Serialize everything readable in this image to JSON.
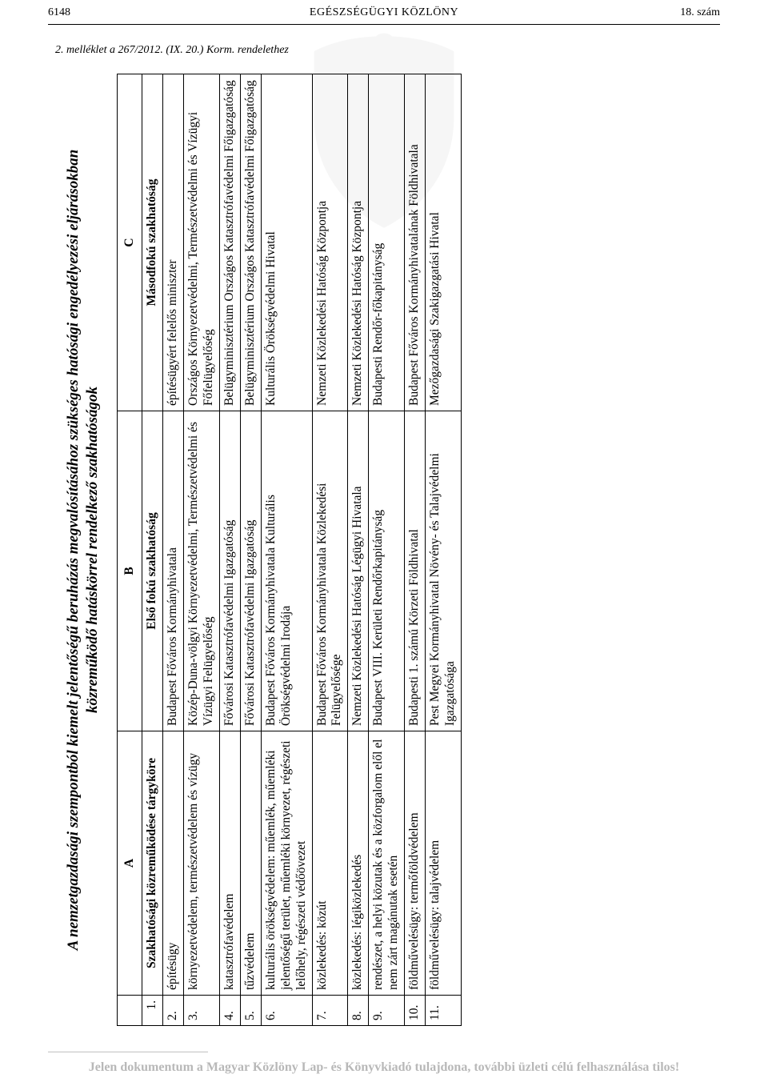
{
  "header": {
    "page_number": "6148",
    "journal_title": "EGÉSZSÉGÜGYI KÖZLÖNY",
    "issue": "18. szám"
  },
  "attachment_note": "2. melléklet a 267/2012. (IX. 20.) Korm. rendelethez",
  "title_line1": "A nemzetgazdasági szempontból kiemelt jelentőségű beruházás megvalósításához szükséges hatósági engedélyezési eljárásokban",
  "title_line2": "közreműködő hatáskörrel rendelkező szakhatóságok",
  "table": {
    "col_letters": [
      "",
      "A",
      "B",
      "C"
    ],
    "subheaders": {
      "num": "1.",
      "a": "Szakhatósági közreműködése tárgyköre",
      "b": "Első fokú szakhatóság",
      "c": "Másodfokú szakhatóság"
    },
    "rows": [
      {
        "n": "2.",
        "a": "építésügy",
        "b": "Budapest Főváros Kormányhivatala",
        "c": "építésügyért felelős miniszter"
      },
      {
        "n": "3.",
        "a": "környezetvédelem, természetvédelem és vízügy",
        "b": "Közép-Duna-völgyi Környezetvédelmi, Természetvédelmi és Vízügyi Felügyelőség",
        "c": "Országos Környezetvédelmi, Természetvédelmi és Vízügyi Főfelügyelőség"
      },
      {
        "n": "4.",
        "a": "katasztrófavédelem",
        "b": "Fővárosi Katasztrófavédelmi Igazgatóság",
        "c": "Belügyminisztérium Országos Katasztrófavédelmi Főigazgatóság"
      },
      {
        "n": "5.",
        "a": "tűzvédelem",
        "b": "Fővárosi Katasztrófavédelmi Igazgatóság",
        "c": "Belügyminisztérium Országos Katasztrófavédelmi Főigazgatóság"
      },
      {
        "n": "6.",
        "a": "kulturális örökségvédelem: műemlék, műemléki jelentőségű terület, műemléki környezet, régészeti lelőhely, régészeti védőövezet",
        "b": "Budapest Főváros Kormányhivatala Kulturális Örökségvédelmi Irodája",
        "c": "Kulturális Örökségvédelmi Hivatal"
      },
      {
        "n": "7.",
        "a": "közlekedés: közút",
        "b": "Budapest Főváros Kormányhivatala Közlekedési Felügyelősége",
        "c": "Nemzeti Közlekedési Hatóság Központja"
      },
      {
        "n": "8.",
        "a": "közlekedés: légiközlekedés",
        "b": "Nemzeti Közlekedési Hatóság Légügyi Hivatala",
        "c": "Nemzeti Közlekedési Hatóság Központja"
      },
      {
        "n": "9.",
        "a": "rendészet, a helyi közutak és a közforgalom elől el nem zárt magánutak esetén",
        "b": "Budapest VIII. Kerületi Rendőrkapitányság",
        "c": "Budapesti Rendőr-főkapitányság"
      },
      {
        "n": "10.",
        "a": "földművelésügy: termőföldvédelem",
        "b": "Budapesti 1. számú Körzeti Földhivatal",
        "c": "Budapest Főváros Kormányhivatalának Földhivatala"
      },
      {
        "n": "11.",
        "a": "földművelésügy: talajvédelem",
        "b": "Pest Megyei Kormányhivatal Növény- és Talajvédelmi Igazgatósága",
        "c": "Mezőgazdasági Szakigazgatási Hivatal"
      }
    ]
  },
  "footer": "Jelen dokumentum a Magyar Közlöny Lap- és Könyvkiadó tulajdona, további üzleti célú felhasználása tilos!"
}
